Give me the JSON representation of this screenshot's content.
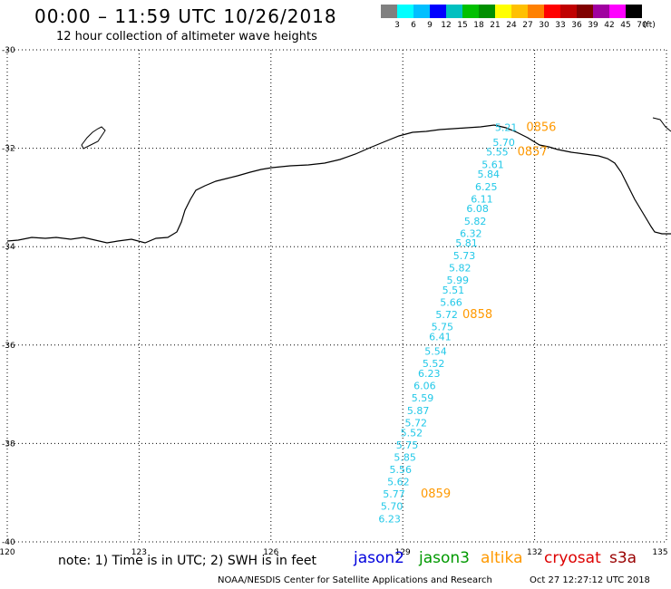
{
  "header": {
    "title": "00:00 – 11:59 UTC 10/26/2018",
    "subtitle": "12 hour collection of altimeter wave heights"
  },
  "scale": {
    "unit": "(ft)",
    "labels": [
      "3",
      "6",
      "9",
      "12",
      "15",
      "18",
      "21",
      "24",
      "27",
      "30",
      "33",
      "36",
      "39",
      "42",
      "45",
      "70"
    ],
    "colors": [
      "#808080",
      "#00ffff",
      "#00bfff",
      "#0000ff",
      "#00c0c0",
      "#00c000",
      "#009000",
      "#ffff00",
      "#ffc000",
      "#ff8000",
      "#ff0000",
      "#c00000",
      "#800000",
      "#a000a0",
      "#ff00ff",
      "#000000"
    ]
  },
  "axes": {
    "x_labels": [
      "120",
      "123",
      "126",
      "129",
      "132",
      "135"
    ],
    "y_labels": [
      "-30",
      "-32",
      "-34",
      "-36",
      "-38",
      "-40"
    ]
  },
  "chart_data": {
    "type": "scatter",
    "x_range": [
      120,
      135
    ],
    "y_range": [
      -40,
      -30
    ],
    "track_color": "#22c8e8",
    "time_color": "#ff9900",
    "wave_heights": [
      {
        "lon": 131.35,
        "lat": -31.65,
        "value": "5.21"
      },
      {
        "lon": 131.3,
        "lat": -31.95,
        "value": "5.70"
      },
      {
        "lon": 131.15,
        "lat": -32.15,
        "value": "5.55"
      },
      {
        "lon": 131.05,
        "lat": -32.4,
        "value": "5.61"
      },
      {
        "lon": 130.95,
        "lat": -32.6,
        "value": "5.84"
      },
      {
        "lon": 130.9,
        "lat": -32.85,
        "value": "6.25"
      },
      {
        "lon": 130.8,
        "lat": -33.1,
        "value": "6.11"
      },
      {
        "lon": 130.7,
        "lat": -33.3,
        "value": "6.08"
      },
      {
        "lon": 130.65,
        "lat": -33.55,
        "value": "5.82"
      },
      {
        "lon": 130.55,
        "lat": -33.8,
        "value": "6.32"
      },
      {
        "lon": 130.45,
        "lat": -34.0,
        "value": "5.81"
      },
      {
        "lon": 130.4,
        "lat": -34.25,
        "value": "5.73"
      },
      {
        "lon": 130.3,
        "lat": -34.5,
        "value": "5.82"
      },
      {
        "lon": 130.25,
        "lat": -34.75,
        "value": "5.99"
      },
      {
        "lon": 130.15,
        "lat": -34.95,
        "value": "5.51"
      },
      {
        "lon": 130.1,
        "lat": -35.2,
        "value": "5.66"
      },
      {
        "lon": 130.0,
        "lat": -35.45,
        "value": "5.72"
      },
      {
        "lon": 129.9,
        "lat": -35.7,
        "value": "5.75"
      },
      {
        "lon": 129.85,
        "lat": -35.9,
        "value": "6.41"
      },
      {
        "lon": 129.75,
        "lat": -36.2,
        "value": "5.54"
      },
      {
        "lon": 129.7,
        "lat": -36.45,
        "value": "5.52"
      },
      {
        "lon": 129.6,
        "lat": -36.65,
        "value": "6.23"
      },
      {
        "lon": 129.5,
        "lat": -36.9,
        "value": "6.06"
      },
      {
        "lon": 129.45,
        "lat": -37.15,
        "value": "5.59"
      },
      {
        "lon": 129.35,
        "lat": -37.4,
        "value": "5.87"
      },
      {
        "lon": 129.3,
        "lat": -37.65,
        "value": "5.72"
      },
      {
        "lon": 129.2,
        "lat": -37.85,
        "value": "5.52"
      },
      {
        "lon": 129.1,
        "lat": -38.1,
        "value": "5.75"
      },
      {
        "lon": 129.05,
        "lat": -38.35,
        "value": "5.85"
      },
      {
        "lon": 128.95,
        "lat": -38.6,
        "value": "5.56"
      },
      {
        "lon": 128.9,
        "lat": -38.85,
        "value": "5.62"
      },
      {
        "lon": 128.8,
        "lat": -39.1,
        "value": "5.77"
      },
      {
        "lon": 128.75,
        "lat": -39.35,
        "value": "5.70"
      },
      {
        "lon": 128.7,
        "lat": -39.6,
        "value": "6.23"
      }
    ],
    "times": [
      {
        "lon": 132.15,
        "lat": -31.65,
        "value": "0856"
      },
      {
        "lon": 131.95,
        "lat": -32.15,
        "value": "0857"
      },
      {
        "lon": 130.7,
        "lat": -35.45,
        "value": "0858"
      },
      {
        "lon": 129.75,
        "lat": -39.1,
        "value": "0859"
      }
    ]
  },
  "footer": {
    "note": "note: 1) Time is in UTC; 2) SWH is in feet",
    "satellites": [
      {
        "name": "jason2",
        "color": "#0000dd"
      },
      {
        "name": "jason3",
        "color": "#009900"
      },
      {
        "name": "altika",
        "color": "#ff9900"
      },
      {
        "name": "cryosat",
        "color": "#dd0000"
      },
      {
        "name": "s3a",
        "color": "#990000"
      }
    ],
    "credit": "NOAA/NESDIS Center for Satellite Applications and Research",
    "timestamp": "Oct 27 12:27:12 UTC 2018"
  }
}
